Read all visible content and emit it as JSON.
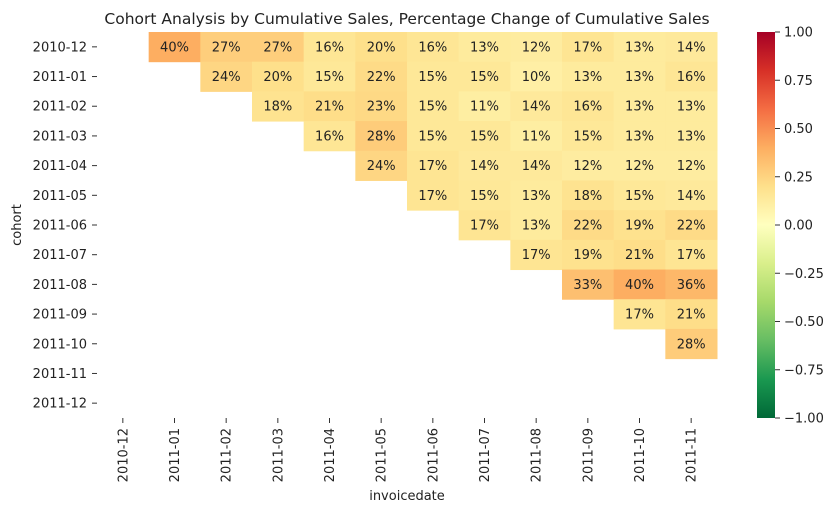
{
  "chart_data": {
    "type": "heatmap",
    "title": "Cohort Analysis by Cumulative Sales, Percentage Change of Cumulative Sales",
    "xlabel": "invoicedate",
    "ylabel": "cohort",
    "x_categories": [
      "2010-12",
      "2011-01",
      "2011-02",
      "2011-03",
      "2011-04",
      "2011-05",
      "2011-06",
      "2011-07",
      "2011-08",
      "2011-09",
      "2011-10",
      "2011-11"
    ],
    "y_categories": [
      "2010-12",
      "2011-01",
      "2011-02",
      "2011-03",
      "2011-04",
      "2011-05",
      "2011-06",
      "2011-07",
      "2011-08",
      "2011-09",
      "2011-10",
      "2011-11",
      "2011-12"
    ],
    "values": [
      [
        null,
        0.4,
        0.27,
        0.27,
        0.16,
        0.2,
        0.16,
        0.13,
        0.12,
        0.17,
        0.13,
        0.14
      ],
      [
        null,
        null,
        0.24,
        0.2,
        0.15,
        0.22,
        0.15,
        0.15,
        0.1,
        0.13,
        0.13,
        0.16
      ],
      [
        null,
        null,
        null,
        0.18,
        0.21,
        0.23,
        0.15,
        0.11,
        0.14,
        0.16,
        0.13,
        0.13
      ],
      [
        null,
        null,
        null,
        null,
        0.16,
        0.28,
        0.15,
        0.15,
        0.11,
        0.15,
        0.13,
        0.13
      ],
      [
        null,
        null,
        null,
        null,
        null,
        0.24,
        0.17,
        0.14,
        0.14,
        0.12,
        0.12,
        0.12
      ],
      [
        null,
        null,
        null,
        null,
        null,
        null,
        0.17,
        0.15,
        0.13,
        0.18,
        0.15,
        0.14
      ],
      [
        null,
        null,
        null,
        null,
        null,
        null,
        null,
        0.17,
        0.13,
        0.22,
        0.19,
        0.22
      ],
      [
        null,
        null,
        null,
        null,
        null,
        null,
        null,
        null,
        0.17,
        0.19,
        0.21,
        0.17
      ],
      [
        null,
        null,
        null,
        null,
        null,
        null,
        null,
        null,
        null,
        0.33,
        0.4,
        0.36
      ],
      [
        null,
        null,
        null,
        null,
        null,
        null,
        null,
        null,
        null,
        null,
        0.17,
        0.21
      ],
      [
        null,
        null,
        null,
        null,
        null,
        null,
        null,
        null,
        null,
        null,
        null,
        0.28
      ],
      [
        null,
        null,
        null,
        null,
        null,
        null,
        null,
        null,
        null,
        null,
        null,
        null
      ],
      [
        null,
        null,
        null,
        null,
        null,
        null,
        null,
        null,
        null,
        null,
        null,
        null
      ]
    ],
    "value_format": "percent",
    "colormap": "RdYlGn_r",
    "vmin": -1.0,
    "vmax": 1.0,
    "colorbar_ticks": [
      1.0,
      0.75,
      0.5,
      0.25,
      0.0,
      -0.25,
      -0.5,
      -0.75,
      -1.0
    ],
    "colorbar_tick_labels": [
      "1.00",
      "0.75",
      "0.50",
      "0.25",
      "0.00",
      "−0.25",
      "−0.50",
      "−0.75",
      "−1.00"
    ],
    "grid": false,
    "legend": "colorbar-right"
  }
}
